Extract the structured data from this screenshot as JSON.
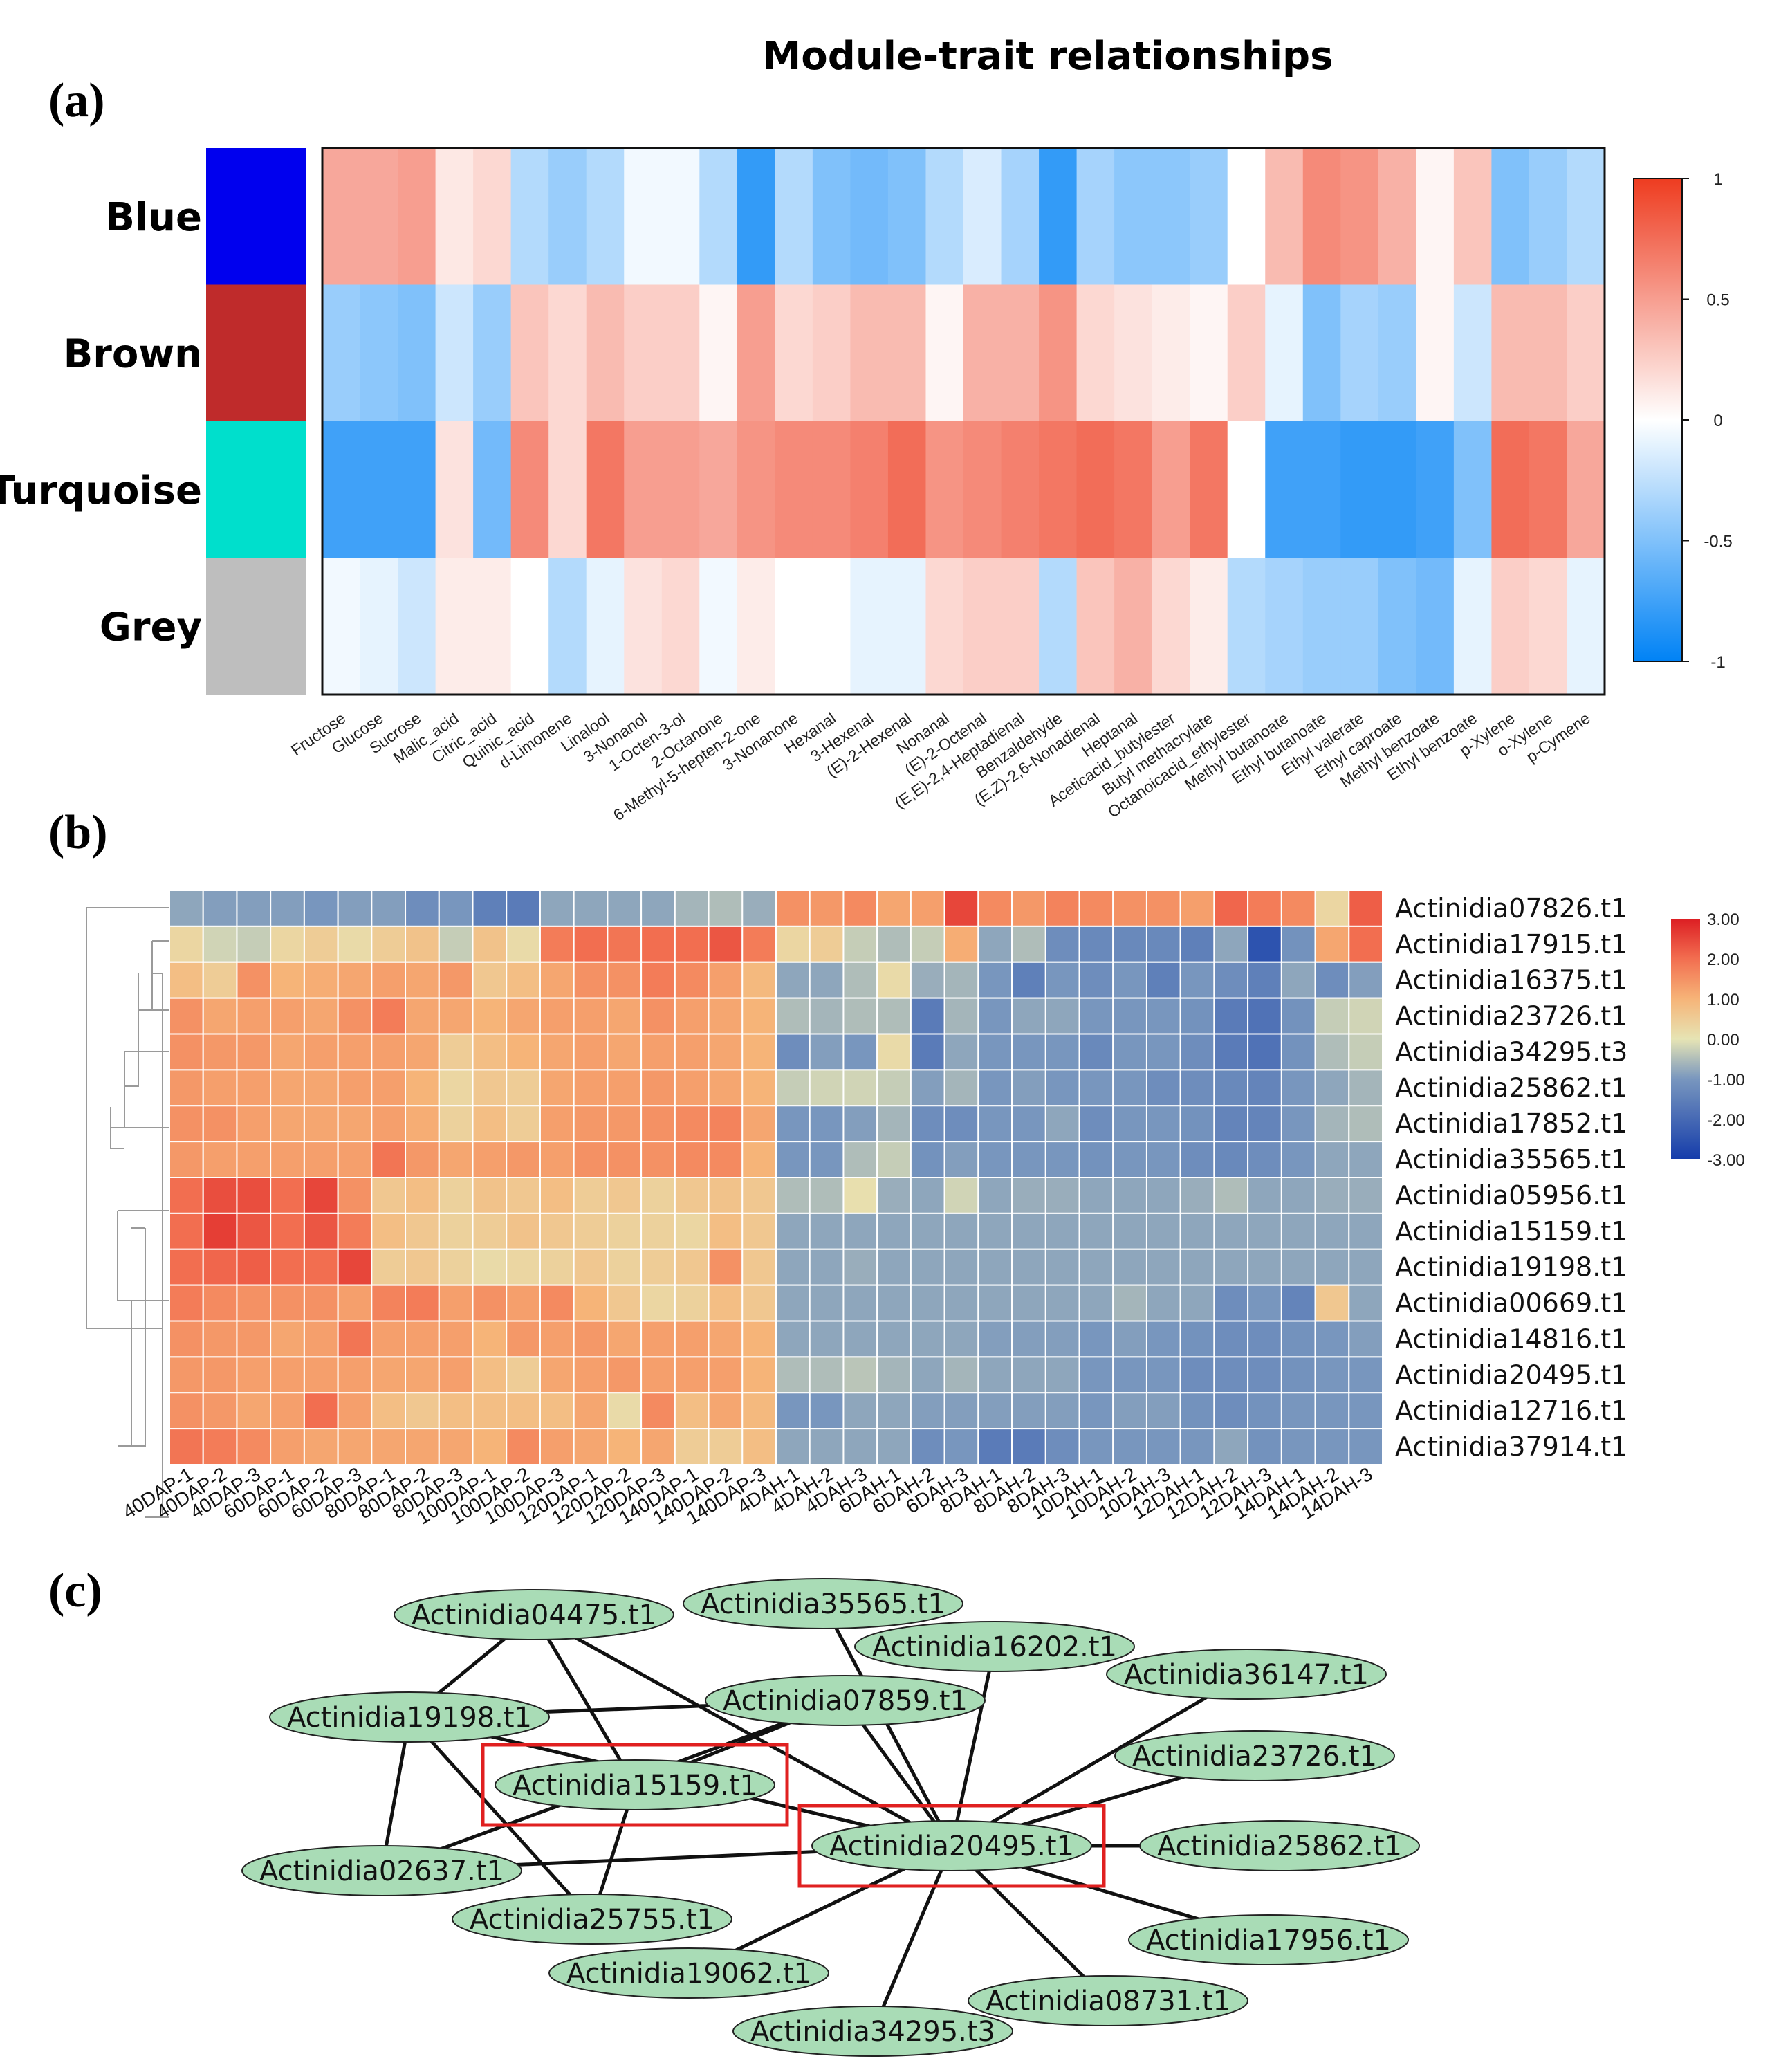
{
  "panels": {
    "a": "(a)",
    "b": "(b)",
    "c": "(c)"
  },
  "chart_data": [
    {
      "type": "heatmap",
      "id": "module-trait",
      "title": "Module-trait relationships",
      "rows": [
        "Blue",
        "Brown",
        "Turquoise",
        "Grey"
      ],
      "row_colors": [
        "#0000ee",
        "#bf2b2b",
        "#00dfcc",
        "#bebebe"
      ],
      "columns": [
        "Fructose",
        "Glucose",
        "Sucrose",
        "Malic_acid",
        "Citric_acid",
        "Quinic_acid",
        "d-Limonene",
        "Linalool",
        "3-Nonanol",
        "1-Octen-3-ol",
        "2-Octanone",
        "6-Methyl-5-hepten-2-one",
        "3-Nonanone",
        "Hexanal",
        "3-Hexenal",
        "(E)-2-Hexenal",
        "Nonanal",
        "(E)-2-Octenal",
        "(E,E)-2,4-Heptadienal",
        "Benzaldehyde",
        "(E,Z)-2,6-Nonadienal",
        "Heptanal",
        "Aceticacid_butylester",
        "Butyl methacrylate",
        "Octanoicacid_ethylester",
        "Methyl butanoate",
        "Ethyl butanoate",
        "Ethyl valerate",
        "Ethyl caproate",
        "Methyl benzoate",
        "Ethyl benzoate",
        "p-Xylene",
        "o-Xylene",
        "p-Cymene"
      ],
      "values": [
        [
          0.45,
          0.45,
          0.5,
          0.12,
          0.2,
          -0.3,
          -0.4,
          -0.3,
          -0.05,
          -0.05,
          -0.3,
          -0.8,
          -0.3,
          -0.5,
          -0.55,
          -0.5,
          -0.3,
          -0.15,
          -0.35,
          -0.8,
          -0.35,
          -0.45,
          -0.45,
          -0.4,
          0.0,
          0.35,
          0.6,
          0.55,
          0.4,
          0.05,
          0.3,
          -0.5,
          -0.4,
          -0.3
        ],
        [
          -0.4,
          -0.45,
          -0.5,
          -0.2,
          -0.4,
          0.3,
          0.2,
          0.35,
          0.25,
          0.25,
          0.05,
          0.5,
          0.2,
          0.25,
          0.35,
          0.35,
          0.05,
          0.4,
          0.4,
          0.55,
          0.2,
          0.15,
          0.1,
          0.05,
          0.25,
          -0.1,
          -0.5,
          -0.35,
          -0.4,
          0.05,
          -0.2,
          0.35,
          0.35,
          0.25
        ],
        [
          -0.75,
          -0.75,
          -0.75,
          0.15,
          -0.55,
          0.6,
          0.2,
          0.7,
          0.5,
          0.5,
          0.45,
          0.55,
          0.6,
          0.6,
          0.65,
          0.75,
          0.55,
          0.6,
          0.65,
          0.7,
          0.75,
          0.7,
          0.5,
          0.7,
          0.0,
          -0.75,
          -0.75,
          -0.8,
          -0.8,
          -0.75,
          -0.5,
          0.75,
          0.7,
          0.45
        ],
        [
          -0.05,
          -0.1,
          -0.2,
          0.1,
          0.1,
          0.0,
          -0.3,
          -0.1,
          0.15,
          0.2,
          -0.05,
          0.1,
          0.0,
          0.0,
          -0.1,
          -0.1,
          0.2,
          0.25,
          0.25,
          -0.3,
          0.3,
          0.4,
          0.2,
          0.1,
          -0.3,
          -0.35,
          -0.4,
          -0.4,
          -0.5,
          -0.55,
          -0.1,
          0.25,
          0.2,
          -0.1
        ]
      ],
      "color_range": [
        -1,
        1
      ],
      "colorbar_ticks": [
        {
          "v": 1,
          "label": "1"
        },
        {
          "v": 0.5,
          "label": "0.5"
        },
        {
          "v": 0,
          "label": "0"
        },
        {
          "v": -0.5,
          "label": "-0.5"
        },
        {
          "v": -1,
          "label": "-1"
        }
      ]
    },
    {
      "type": "heatmap",
      "id": "expression",
      "columns": [
        "40DAP-1",
        "40DAP-2",
        "40DAP-3",
        "60DAP-1",
        "60DAP-2",
        "60DAP-3",
        "80DAP-1",
        "80DAP-2",
        "80DAP-3",
        "100DAP-1",
        "100DAP-2",
        "100DAP-3",
        "120DAP-1",
        "120DAP-2",
        "120DAP-3",
        "140DAP-1",
        "140DAP-2",
        "140DAP-3",
        "4DAH-1",
        "4DAH-2",
        "4DAH-3",
        "6DAH-1",
        "6DAH-2",
        "6DAH-3",
        "8DAH-1",
        "8DAH-2",
        "8DAH-3",
        "10DAH-1",
        "10DAH-2",
        "10DAH-3",
        "12DAH-1",
        "12DAH-2",
        "12DAH-3",
        "14DAH-1",
        "14DAH-2",
        "14DAH-3"
      ],
      "rows": [
        "Actinidia07826.t1",
        "Actinidia17915.t1",
        "Actinidia16375.t1",
        "Actinidia23726.t1",
        "Actinidia34295.t3",
        "Actinidia25862.t1",
        "Actinidia17852.t1",
        "Actinidia35565.t1",
        "Actinidia05956.t1",
        "Actinidia15159.t1",
        "Actinidia19198.t1",
        "Actinidia00669.t1",
        "Actinidia14816.t1",
        "Actinidia20495.t1",
        "Actinidia12716.t1",
        "Actinidia37914.t1"
      ],
      "values": [
        [
          -0.8,
          -0.9,
          -0.9,
          -0.9,
          -1.0,
          -0.9,
          -0.9,
          -1.2,
          -1.0,
          -1.5,
          -1.6,
          -0.8,
          -0.8,
          -0.8,
          -0.8,
          -0.6,
          -0.5,
          -0.7,
          1.5,
          1.4,
          1.6,
          1.2,
          1.3,
          2.5,
          1.6,
          1.4,
          1.7,
          1.6,
          1.5,
          1.5,
          1.3,
          2.1,
          1.8,
          1.6,
          0.3,
          2.2
        ],
        [
          0.3,
          -0.2,
          -0.3,
          0.3,
          0.5,
          0.2,
          0.5,
          0.7,
          -0.3,
          0.7,
          0.2,
          1.8,
          2.0,
          1.9,
          2.0,
          2.0,
          2.3,
          1.8,
          0.3,
          0.5,
          -0.3,
          -0.5,
          -0.3,
          1.1,
          -0.8,
          -0.5,
          -1.2,
          -1.3,
          -1.3,
          -1.3,
          -1.5,
          -0.8,
          -2.5,
          -1.1,
          1.2,
          2.0
        ],
        [
          0.8,
          0.5,
          1.5,
          1.0,
          1.1,
          1.2,
          1.3,
          1.2,
          1.4,
          0.6,
          0.8,
          1.2,
          1.5,
          1.5,
          1.8,
          1.6,
          1.3,
          0.9,
          -0.8,
          -0.8,
          -0.5,
          0.2,
          -0.7,
          -0.6,
          -1.0,
          -1.5,
          -1.0,
          -1.2,
          -1.0,
          -1.5,
          -1.0,
          -1.2,
          -1.5,
          -0.8,
          -1.2,
          -0.9
        ],
        [
          1.5,
          1.2,
          1.3,
          1.3,
          1.2,
          1.5,
          1.8,
          1.2,
          1.2,
          1.0,
          1.2,
          1.3,
          1.3,
          1.2,
          1.5,
          1.3,
          1.2,
          1.0,
          -0.5,
          -0.6,
          -0.5,
          -0.5,
          -1.6,
          -0.6,
          -1.0,
          -0.8,
          -0.8,
          -1.0,
          -1.0,
          -1.0,
          -1.1,
          -1.6,
          -1.8,
          -1.1,
          -0.3,
          -0.2
        ],
        [
          1.5,
          1.4,
          1.4,
          1.2,
          1.3,
          1.3,
          1.3,
          1.2,
          0.5,
          0.8,
          1.0,
          1.2,
          1.3,
          1.2,
          1.3,
          1.3,
          1.2,
          1.0,
          -1.2,
          -0.9,
          -1.0,
          0.2,
          -1.6,
          -0.8,
          -1.0,
          -1.0,
          -1.0,
          -1.3,
          -1.0,
          -1.0,
          -1.2,
          -1.6,
          -1.8,
          -1.1,
          -0.5,
          -0.3
        ],
        [
          1.4,
          1.3,
          1.3,
          1.2,
          1.2,
          1.3,
          1.3,
          1.0,
          0.3,
          0.6,
          0.5,
          1.2,
          1.3,
          1.3,
          1.4,
          1.3,
          1.2,
          1.0,
          -0.3,
          -0.2,
          -0.2,
          -0.3,
          -0.9,
          -0.6,
          -1.0,
          -0.9,
          -1.0,
          -1.0,
          -1.0,
          -1.2,
          -1.2,
          -1.3,
          -1.4,
          -1.0,
          -0.8,
          -0.6
        ],
        [
          1.5,
          1.5,
          1.3,
          1.2,
          1.2,
          1.2,
          1.3,
          1.1,
          0.4,
          0.8,
          0.5,
          1.3,
          1.4,
          1.4,
          1.5,
          1.6,
          1.7,
          1.2,
          -1.0,
          -1.0,
          -0.9,
          -0.6,
          -1.2,
          -1.2,
          -1.0,
          -1.0,
          -0.8,
          -1.2,
          -1.0,
          -1.0,
          -1.1,
          -1.4,
          -1.4,
          -1.0,
          -0.6,
          -0.5
        ],
        [
          1.4,
          1.3,
          1.3,
          1.3,
          1.3,
          1.3,
          1.9,
          1.4,
          1.2,
          1.3,
          1.4,
          1.3,
          1.5,
          1.5,
          1.5,
          1.6,
          1.6,
          1.0,
          -1.0,
          -1.0,
          -0.5,
          -0.3,
          -1.1,
          -0.9,
          -1.0,
          -1.0,
          -1.0,
          -1.1,
          -1.0,
          -1.0,
          -1.2,
          -1.3,
          -1.2,
          -1.0,
          -0.8,
          -0.8
        ],
        [
          2.0,
          2.4,
          2.4,
          2.0,
          2.5,
          1.5,
          0.6,
          0.8,
          0.4,
          0.7,
          0.6,
          0.8,
          0.5,
          0.6,
          0.4,
          0.6,
          0.7,
          0.6,
          -0.5,
          -0.5,
          0.1,
          -0.7,
          -0.8,
          -0.2,
          -0.8,
          -0.7,
          -0.7,
          -0.8,
          -0.8,
          -0.8,
          -0.7,
          -0.5,
          -0.8,
          -0.8,
          -0.7,
          -0.7
        ],
        [
          2.0,
          2.6,
          2.3,
          2.0,
          2.3,
          1.8,
          0.8,
          0.6,
          0.4,
          0.5,
          0.7,
          0.6,
          0.5,
          0.4,
          0.4,
          0.3,
          0.8,
          0.6,
          -0.8,
          -0.8,
          -0.8,
          -0.8,
          -0.8,
          -0.8,
          -0.8,
          -0.8,
          -0.8,
          -0.8,
          -0.8,
          -0.8,
          -0.8,
          -0.8,
          -0.8,
          -0.8,
          -0.8,
          -0.8
        ],
        [
          2.0,
          2.1,
          2.2,
          2.0,
          2.0,
          2.5,
          0.5,
          0.6,
          0.4,
          0.2,
          0.3,
          0.4,
          0.6,
          0.4,
          0.5,
          0.6,
          1.5,
          0.6,
          -0.8,
          -0.8,
          -0.7,
          -0.8,
          -0.8,
          -0.8,
          -0.8,
          -0.8,
          -0.8,
          -0.8,
          -0.8,
          -0.8,
          -0.8,
          -0.8,
          -0.8,
          -0.8,
          -0.8,
          -0.8
        ],
        [
          1.8,
          1.6,
          1.5,
          1.5,
          1.5,
          1.3,
          1.7,
          1.8,
          1.3,
          1.5,
          1.3,
          1.6,
          1.0,
          0.6,
          0.3,
          0.4,
          0.8,
          0.6,
          -0.8,
          -0.8,
          -0.8,
          -0.8,
          -0.8,
          -0.8,
          -0.8,
          -0.8,
          -0.8,
          -0.8,
          -0.6,
          -0.8,
          -0.8,
          -1.2,
          -1.0,
          -1.4,
          0.6,
          -0.8
        ],
        [
          1.5,
          1.4,
          1.4,
          1.2,
          1.3,
          1.9,
          1.3,
          1.3,
          1.3,
          1.0,
          1.4,
          1.3,
          1.4,
          1.2,
          1.3,
          1.3,
          1.2,
          1.0,
          -0.8,
          -0.8,
          -0.8,
          -0.8,
          -0.8,
          -0.8,
          -0.9,
          -0.9,
          -0.9,
          -1.0,
          -0.9,
          -1.0,
          -1.1,
          -1.2,
          -1.2,
          -1.1,
          -1.0,
          -0.9
        ],
        [
          1.4,
          1.4,
          1.3,
          1.3,
          1.3,
          1.3,
          1.2,
          1.2,
          1.3,
          0.8,
          0.5,
          1.2,
          1.3,
          1.4,
          1.3,
          1.3,
          1.3,
          1.0,
          -0.5,
          -0.5,
          -0.4,
          -0.6,
          -0.8,
          -0.6,
          -0.8,
          -0.8,
          -0.8,
          -1.0,
          -1.0,
          -1.0,
          -1.2,
          -1.2,
          -1.2,
          -1.1,
          -1.0,
          -1.0
        ],
        [
          1.5,
          1.4,
          1.2,
          1.3,
          2.0,
          1.3,
          0.8,
          0.6,
          0.8,
          0.8,
          0.8,
          0.8,
          1.2,
          0.2,
          1.6,
          0.8,
          1.2,
          0.9,
          -1.0,
          -1.0,
          -0.8,
          -0.8,
          -0.9,
          -0.9,
          -0.9,
          -0.9,
          -0.9,
          -1.0,
          -0.9,
          -0.9,
          -1.1,
          -1.2,
          -1.1,
          -1.0,
          -1.0,
          -1.0
        ],
        [
          1.9,
          1.8,
          1.6,
          1.3,
          1.2,
          1.2,
          1.2,
          1.2,
          1.2,
          1.0,
          1.6,
          1.3,
          1.2,
          1.0,
          1.2,
          0.5,
          0.5,
          0.8,
          -0.8,
          -0.8,
          -0.8,
          -0.8,
          -1.2,
          -1.0,
          -1.6,
          -1.6,
          -1.2,
          -1.0,
          -1.0,
          -1.0,
          -1.0,
          -0.8,
          -1.1,
          -1.0,
          -1.0,
          -1.0
        ]
      ],
      "color_range": [
        -3,
        3
      ],
      "colorbar_ticks": [
        {
          "v": 3,
          "label": "3.00"
        },
        {
          "v": 2,
          "label": "2.00"
        },
        {
          "v": 1,
          "label": "1.00"
        },
        {
          "v": 0,
          "label": "0.00"
        },
        {
          "v": -1,
          "label": "-1.00"
        },
        {
          "v": -2,
          "label": "-2.00"
        },
        {
          "v": -3,
          "label": "-3.00"
        }
      ]
    }
  ],
  "network": {
    "nodes": [
      {
        "id": "Actinidia04475.t1",
        "highlight": false
      },
      {
        "id": "Actinidia35565.t1",
        "highlight": false
      },
      {
        "id": "Actinidia16202.t1",
        "highlight": false
      },
      {
        "id": "Actinidia36147.t1",
        "highlight": false
      },
      {
        "id": "Actinidia19198.t1",
        "highlight": false
      },
      {
        "id": "Actinidia07859.t1",
        "highlight": false
      },
      {
        "id": "Actinidia23726.t1",
        "highlight": false
      },
      {
        "id": "Actinidia15159.t1",
        "highlight": true
      },
      {
        "id": "Actinidia20495.t1",
        "highlight": true
      },
      {
        "id": "Actinidia25862.t1",
        "highlight": false
      },
      {
        "id": "Actinidia02637.t1",
        "highlight": false
      },
      {
        "id": "Actinidia25755.t1",
        "highlight": false
      },
      {
        "id": "Actinidia17956.t1",
        "highlight": false
      },
      {
        "id": "Actinidia19062.t1",
        "highlight": false
      },
      {
        "id": "Actinidia08731.t1",
        "highlight": false
      },
      {
        "id": "Actinidia34295.t3",
        "highlight": false
      }
    ],
    "edges": [
      [
        "Actinidia04475.t1",
        "Actinidia19198.t1"
      ],
      [
        "Actinidia04475.t1",
        "Actinidia15159.t1"
      ],
      [
        "Actinidia04475.t1",
        "Actinidia20495.t1"
      ],
      [
        "Actinidia19198.t1",
        "Actinidia07859.t1"
      ],
      [
        "Actinidia19198.t1",
        "Actinidia02637.t1"
      ],
      [
        "Actinidia19198.t1",
        "Actinidia20495.t1"
      ],
      [
        "Actinidia19198.t1",
        "Actinidia25755.t1"
      ],
      [
        "Actinidia07859.t1",
        "Actinidia15159.t1"
      ],
      [
        "Actinidia07859.t1",
        "Actinidia20495.t1"
      ],
      [
        "Actinidia35565.t1",
        "Actinidia20495.t1"
      ],
      [
        "Actinidia16202.t1",
        "Actinidia20495.t1"
      ],
      [
        "Actinidia36147.t1",
        "Actinidia20495.t1"
      ],
      [
        "Actinidia23726.t1",
        "Actinidia20495.t1"
      ],
      [
        "Actinidia25862.t1",
        "Actinidia20495.t1"
      ],
      [
        "Actinidia17956.t1",
        "Actinidia20495.t1"
      ],
      [
        "Actinidia08731.t1",
        "Actinidia20495.t1"
      ],
      [
        "Actinidia34295.t3",
        "Actinidia20495.t1"
      ],
      [
        "Actinidia19062.t1",
        "Actinidia20495.t1"
      ],
      [
        "Actinidia02637.t1",
        "Actinidia20495.t1"
      ],
      [
        "Actinidia02637.t1",
        "Actinidia07859.t1"
      ],
      [
        "Actinidia15159.t1",
        "Actinidia25755.t1"
      ]
    ]
  }
}
